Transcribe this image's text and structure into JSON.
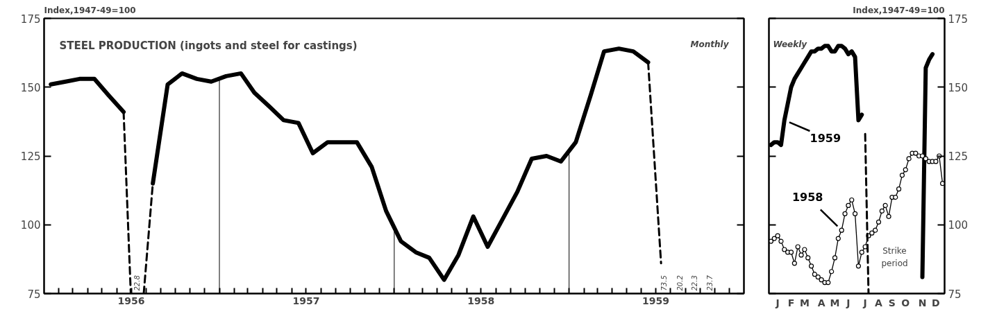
{
  "chart_data": [
    {
      "type": "line",
      "title": "STEEL PRODUCTION (ingots and steel for castings)",
      "ylabel": "Index,1947-49=100",
      "annotations": [
        "Monthly",
        "22.8",
        "73.5",
        "20.2",
        "22.3",
        "23.7"
      ],
      "series": [
        {
          "color": "#000000",
          "x": [
            "1956-01-15",
            "1956-02-15",
            "1956-03-15",
            "1956-04-15",
            "1956-05-15",
            "1956-06-15",
            "1956-07-15",
            "1956-08-15",
            "1956-09-15",
            "1956-10-15",
            "1956-11-15",
            "1956-12-15",
            "1957-01-15",
            "1957-02-15",
            "1957-03-15",
            "1957-04-15",
            "1957-05-15",
            "1957-06-15",
            "1957-07-15",
            "1957-08-15",
            "1957-09-15",
            "1957-10-15",
            "1957-11-15",
            "1957-12-15",
            "1958-01-15",
            "1958-02-15",
            "1958-03-15",
            "1958-04-15",
            "1958-05-15",
            "1958-06-15",
            "1958-07-15",
            "1958-08-15",
            "1958-09-15",
            "1958-10-15",
            "1958-11-15",
            "1958-12-15",
            "1959-01-15",
            "1959-02-15",
            "1959-03-15",
            "1959-04-15",
            "1959-05-15",
            "1959-06-15"
          ],
          "values": [
            151,
            152,
            153,
            153,
            147,
            141,
            null,
            115,
            151,
            155,
            153,
            152,
            154,
            155,
            148,
            143,
            138,
            137,
            126,
            130,
            130,
            130,
            121,
            105,
            94,
            90,
            88,
            80,
            89,
            103,
            92,
            102,
            112,
            124,
            125,
            123,
            130,
            147,
            163,
            164,
            163,
            159
          ]
        },
        {
          "color": "#000000",
          "line_style": "dashed",
          "x": [
            "1956-06-15",
            "1956-06-30"
          ],
          "values": [
            141,
            75
          ]
        },
        {
          "color": "#000000",
          "line_style": "dashed",
          "x": [
            "1956-07-27",
            "1956-08-15"
          ],
          "values": [
            75,
            115
          ]
        },
        {
          "color": "#000000",
          "line_style": "dashed",
          "x": [
            "1959-06-15",
            "1959-07-12"
          ],
          "values": [
            159,
            86
          ]
        }
      ],
      "xlim": [
        "1956-01-01",
        "1960-01-01"
      ],
      "xticks": [
        {
          "value": "1956-02-01",
          "label": null
        },
        {
          "value": "1956-03-01",
          "label": null
        },
        {
          "value": "1956-04-01",
          "label": null
        },
        {
          "value": "1956-05-01",
          "label": null
        },
        {
          "value": "1956-06-01",
          "label": null
        },
        {
          "value": "1956-07-01",
          "label": "1956"
        },
        {
          "value": "1956-08-01",
          "label": null
        },
        {
          "value": "1956-09-01",
          "label": null
        },
        {
          "value": "1956-10-01",
          "label": null
        },
        {
          "value": "1956-11-01",
          "label": null
        },
        {
          "value": "1956-12-01",
          "label": null
        },
        {
          "value": "1957-01-01",
          "label": null
        },
        {
          "value": "1957-02-01",
          "label": null
        },
        {
          "value": "1957-03-01",
          "label": null
        },
        {
          "value": "1957-04-01",
          "label": null
        },
        {
          "value": "1957-05-01",
          "label": null
        },
        {
          "value": "1957-06-01",
          "label": null
        },
        {
          "value": "1957-07-01",
          "label": "1957"
        },
        {
          "value": "1957-08-01",
          "label": null
        },
        {
          "value": "1957-09-01",
          "label": null
        },
        {
          "value": "1957-10-01",
          "label": null
        },
        {
          "value": "1957-11-01",
          "label": null
        },
        {
          "value": "1957-12-01",
          "label": null
        },
        {
          "value": "1958-01-01",
          "label": null
        },
        {
          "value": "1958-02-01",
          "label": null
        },
        {
          "value": "1958-03-01",
          "label": null
        },
        {
          "value": "1958-04-01",
          "label": null
        },
        {
          "value": "1958-05-01",
          "label": null
        },
        {
          "value": "1958-06-01",
          "label": null
        },
        {
          "value": "1958-07-01",
          "label": "1958"
        },
        {
          "value": "1958-08-01",
          "label": null
        },
        {
          "value": "1958-09-01",
          "label": null
        },
        {
          "value": "1958-10-01",
          "label": null
        },
        {
          "value": "1958-11-01",
          "label": null
        },
        {
          "value": "1958-12-01",
          "label": null
        },
        {
          "value": "1959-01-01",
          "label": null
        },
        {
          "value": "1959-02-01",
          "label": null
        },
        {
          "value": "1959-03-01",
          "label": null
        },
        {
          "value": "1959-04-01",
          "label": null
        },
        {
          "value": "1959-05-01",
          "label": null
        },
        {
          "value": "1959-06-01",
          "label": null
        },
        {
          "value": "1959-07-01",
          "label": "1959"
        },
        {
          "value": "1959-08-01",
          "label": null
        },
        {
          "value": "1959-09-01",
          "label": null
        },
        {
          "value": "1959-10-01",
          "label": null
        },
        {
          "value": "1959-11-01",
          "label": null
        },
        {
          "value": "1959-12-01",
          "label": null
        }
      ],
      "ylim": [
        75,
        175
      ],
      "yticks": [
        75,
        100,
        125,
        150,
        175
      ],
      "ref_lines": [
        {
          "axis": "x",
          "value": "1957-01-01",
          "color": "#000000"
        },
        {
          "axis": "x",
          "value": "1958-01-01",
          "color": "#000000"
        },
        {
          "axis": "x",
          "value": "1959-01-01",
          "color": "#000000"
        }
      ]
    },
    {
      "type": "line",
      "ylabel": "Index,1947-49=100",
      "annotations": [
        "Weekly",
        "Strike period"
      ],
      "categories": [
        null,
        null,
        "J",
        null,
        null,
        null,
        "F",
        null,
        null,
        null,
        "M",
        null,
        null,
        null,
        null,
        "A",
        null,
        null,
        null,
        "M",
        null,
        null,
        null,
        "J",
        null,
        null,
        null,
        null,
        "J",
        null,
        null,
        null,
        "A",
        null,
        null,
        null,
        "S",
        null,
        null,
        null,
        "O",
        null,
        null,
        null,
        null,
        "N",
        null,
        null,
        null,
        "D",
        null,
        null
      ],
      "series": [
        {
          "name": "1959",
          "color": "#000000",
          "marker": "none",
          "values": [
            129,
            130,
            130,
            129,
            138,
            144,
            150,
            153,
            155,
            157,
            159,
            161,
            163,
            163,
            164,
            164,
            165,
            165,
            163,
            163,
            165,
            165,
            164,
            162,
            163,
            161,
            138,
            140,
            null,
            null,
            null,
            null,
            null,
            null,
            null,
            null,
            null,
            null,
            null,
            null,
            null,
            null,
            null,
            null,
            null,
            81,
            157,
            160,
            162,
            null,
            null,
            null
          ]
        },
        {
          "name": "1958",
          "color": "#000000",
          "marker": "circle",
          "values": [
            94,
            95,
            96,
            94,
            91,
            90,
            90,
            86,
            92,
            89,
            91,
            88,
            85,
            82,
            81,
            80,
            79,
            79,
            83,
            88,
            95,
            98,
            104,
            107,
            109,
            104,
            85,
            90,
            92,
            96,
            97,
            98,
            101,
            105,
            107,
            103,
            110,
            110,
            113,
            118,
            120,
            124,
            126,
            126,
            125,
            125,
            124,
            123,
            123,
            123,
            125,
            115
          ]
        },
        {
          "color": "#000000",
          "marker": "none",
          "line_style": "dashed",
          "values": [
            null,
            null,
            null,
            null,
            null,
            null,
            null,
            null,
            null,
            null,
            null,
            null,
            null,
            null,
            null,
            null,
            null,
            null,
            null,
            null,
            null,
            null,
            null,
            null,
            null,
            null,
            null,
            null,
            133,
            75,
            null,
            null,
            null,
            null,
            null,
            null,
            null,
            null,
            null,
            null,
            null,
            null,
            null,
            null,
            null,
            null,
            null,
            null,
            null,
            null,
            null,
            null
          ]
        }
      ],
      "ylim": [
        75,
        175
      ],
      "yticks": [
        75,
        100,
        125,
        150,
        175
      ]
    }
  ]
}
